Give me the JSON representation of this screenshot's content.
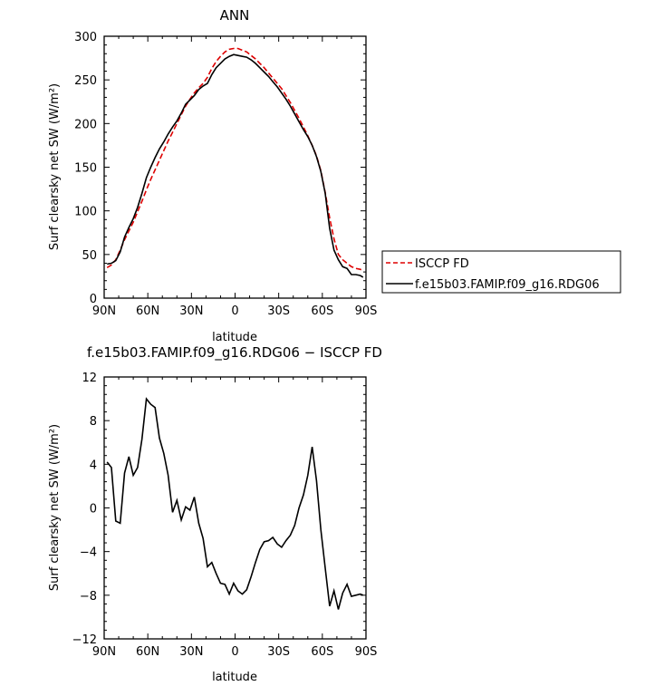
{
  "chart_data": [
    {
      "type": "line",
      "title": "ANN",
      "xlabel": "latitude",
      "ylabel": "Surf clearsky net SW (W/m²)",
      "xlim": [
        90,
        -90
      ],
      "ylim": [
        0,
        300
      ],
      "x_ticks": [
        90,
        60,
        30,
        0,
        -30,
        -60,
        -90
      ],
      "x_tick_labels": [
        "90N",
        "60N",
        "30N",
        "0",
        "30S",
        "60S",
        "90S"
      ],
      "y_ticks": [
        0,
        50,
        100,
        150,
        200,
        250,
        300
      ],
      "y_tick_labels": [
        "0",
        "50",
        "100",
        "150",
        "200",
        "250",
        "300"
      ],
      "legend": "right",
      "series": [
        {
          "name": "ISCCP FD",
          "color": "#dd0000",
          "dash": "dashed",
          "x": [
            88,
            85,
            82,
            79,
            76,
            73,
            70,
            67,
            64,
            61,
            58,
            55,
            52,
            49,
            46,
            43,
            40,
            37,
            34,
            31,
            28,
            25,
            22,
            19,
            16,
            13,
            10,
            7,
            4,
            1,
            -2,
            -5,
            -8,
            -11,
            -14,
            -17,
            -20,
            -23,
            -26,
            -29,
            -32,
            -35,
            -38,
            -41,
            -44,
            -47,
            -50,
            -53,
            -56,
            -59,
            -62,
            -65,
            -68,
            -71,
            -74,
            -77,
            -80,
            -83,
            -86,
            -88
          ],
          "y": [
            35,
            38,
            44,
            55,
            67,
            77,
            87,
            99,
            111,
            124,
            136,
            147,
            158,
            169,
            180,
            190,
            200,
            210,
            220,
            228,
            235,
            241,
            246,
            253,
            263,
            271,
            277,
            282,
            285,
            286,
            286,
            284,
            282,
            278,
            274,
            269,
            264,
            258,
            252,
            246,
            240,
            232,
            224,
            215,
            206,
            196,
            186,
            175,
            163,
            146,
            121,
            92,
            68,
            50,
            44,
            40,
            36,
            34,
            33,
            32
          ]
        },
        {
          "name": "f.e15b03.FAMIP.f09_g16.RDG06",
          "color": "#000000",
          "dash": "solid",
          "x": [
            88,
            85,
            82,
            79,
            76,
            73,
            70,
            67,
            64,
            61,
            58,
            55,
            52,
            49,
            46,
            43,
            40,
            37,
            34,
            31,
            28,
            25,
            22,
            19,
            16,
            13,
            10,
            7,
            4,
            1,
            -2,
            -5,
            -8,
            -11,
            -14,
            -17,
            -20,
            -23,
            -26,
            -29,
            -32,
            -35,
            -38,
            -41,
            -44,
            -47,
            -50,
            -53,
            -56,
            -59,
            -62,
            -65,
            -68,
            -71,
            -74,
            -77,
            -80,
            -83,
            -86,
            -88
          ],
          "y": [
            39,
            40,
            43,
            53,
            70,
            81,
            91,
            104,
            120,
            138,
            150,
            161,
            171,
            179,
            188,
            196,
            203,
            212,
            222,
            227,
            232,
            239,
            243,
            246,
            256,
            264,
            269,
            274,
            277,
            279,
            278,
            277,
            276,
            273,
            269,
            264,
            259,
            254,
            248,
            242,
            235,
            228,
            220,
            211,
            202,
            193,
            185,
            175,
            162,
            145,
            120,
            80,
            55,
            44,
            36,
            34,
            27,
            27,
            26,
            24
          ]
        }
      ]
    },
    {
      "type": "line",
      "title": "f.e15b03.FAMIP.f09_g16.RDG06 − ISCCP FD",
      "xlabel": "latitude",
      "ylabel": "Surf clearsky net SW (W/m²)",
      "xlim": [
        90,
        -90
      ],
      "ylim": [
        -12,
        12
      ],
      "x_ticks": [
        90,
        60,
        30,
        0,
        -30,
        -60,
        -90
      ],
      "x_tick_labels": [
        "90N",
        "60N",
        "30N",
        "0",
        "30S",
        "60S",
        "90S"
      ],
      "y_ticks": [
        -12,
        -8,
        -4,
        0,
        4,
        8,
        12
      ],
      "y_tick_labels": [
        "−12",
        "−8",
        "−4",
        "0",
        "4",
        "8",
        "12"
      ],
      "series": [
        {
          "color": "#000000",
          "x": [
            88,
            85,
            82,
            79,
            76,
            73,
            70,
            67,
            64,
            61,
            58,
            55,
            52,
            49,
            46,
            43,
            40,
            37,
            34,
            31,
            28,
            25,
            22,
            19,
            16,
            13,
            10,
            7,
            4,
            1,
            -2,
            -5,
            -8,
            -11,
            -14,
            -17,
            -20,
            -23,
            -26,
            -29,
            -32,
            -35,
            -38,
            -41,
            -44,
            -47,
            -50,
            -53,
            -56,
            -59,
            -62,
            -65,
            -68,
            -71,
            -74,
            -77,
            -80,
            -83,
            -86,
            -88
          ],
          "y": [
            4.2,
            3.7,
            -1.2,
            -1.4,
            3.2,
            4.7,
            3.0,
            3.7,
            6.3,
            10.0,
            9.5,
            9.2,
            6.4,
            5.0,
            3.0,
            -0.4,
            0.7,
            -1.1,
            0.1,
            -0.2,
            1.0,
            -1.4,
            -2.8,
            -5.4,
            -5.0,
            -6.0,
            -6.9,
            -7.0,
            -7.9,
            -6.9,
            -7.6,
            -7.9,
            -7.5,
            -6.3,
            -5.0,
            -3.8,
            -3.1,
            -3.0,
            -2.7,
            -3.3,
            -3.6,
            -3.0,
            -2.5,
            -1.6,
            0.0,
            1.2,
            3.0,
            5.6,
            2.5,
            -2.0,
            -5.5,
            -9.0,
            -7.6,
            -9.3,
            -7.8,
            -7.0,
            -8.1,
            -8.0,
            -7.9,
            -8.0
          ]
        }
      ]
    }
  ]
}
